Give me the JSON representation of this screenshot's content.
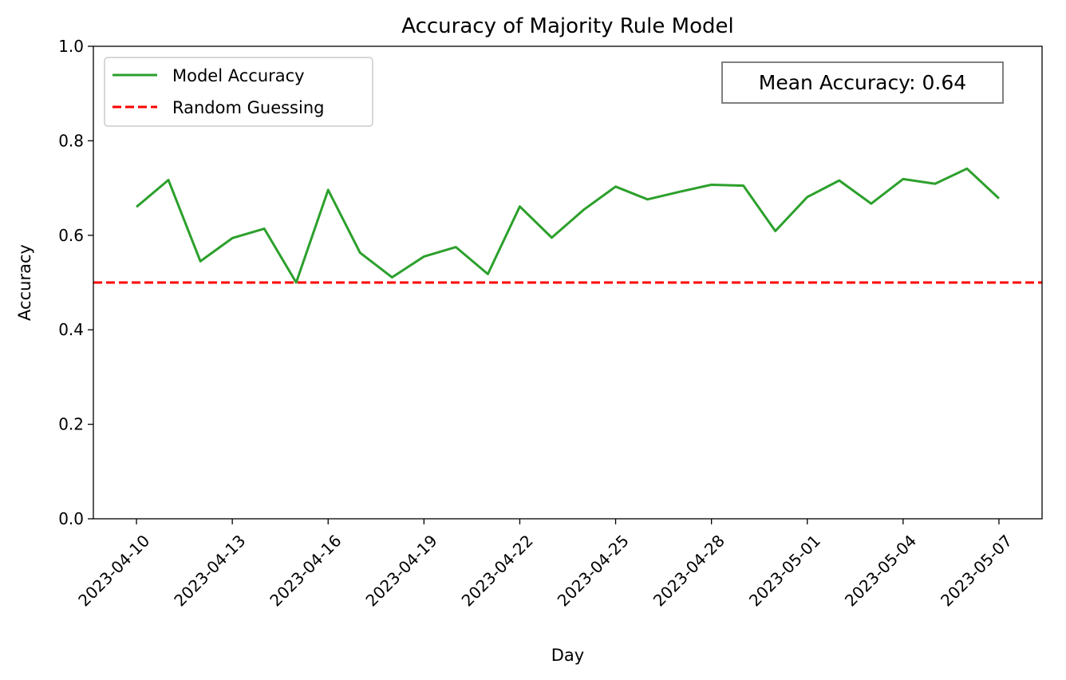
{
  "chart_data": {
    "type": "line",
    "title": "Accuracy of Majority Rule Model",
    "xlabel": "Day",
    "ylabel": "Accuracy",
    "ylim": [
      0,
      1
    ],
    "x_type": "date",
    "y_ticks": [
      "0.0",
      "0.2",
      "0.4",
      "0.6",
      "0.8",
      "1.0"
    ],
    "x_ticks": [
      "2023-04-10",
      "2023-04-13",
      "2023-04-16",
      "2023-04-19",
      "2023-04-22",
      "2023-04-25",
      "2023-04-28",
      "2023-05-01",
      "2023-05-04",
      "2023-05-07"
    ],
    "x": [
      "2023-04-10",
      "2023-04-11",
      "2023-04-12",
      "2023-04-13",
      "2023-04-14",
      "2023-04-15",
      "2023-04-16",
      "2023-04-17",
      "2023-04-18",
      "2023-04-19",
      "2023-04-20",
      "2023-04-21",
      "2023-04-22",
      "2023-04-23",
      "2023-04-24",
      "2023-04-25",
      "2023-04-26",
      "2023-04-27",
      "2023-04-28",
      "2023-04-29",
      "2023-04-30",
      "2023-05-01",
      "2023-05-02",
      "2023-05-03",
      "2023-05-04",
      "2023-05-05",
      "2023-05-06",
      "2023-05-07"
    ],
    "series": [
      {
        "name": "Model Accuracy",
        "color": "#2ca02c",
        "style": "solid",
        "values": [
          0.66,
          0.717,
          0.545,
          0.594,
          0.614,
          0.5,
          0.696,
          0.563,
          0.511,
          0.555,
          0.575,
          0.518,
          0.661,
          0.595,
          0.654,
          0.703,
          0.676,
          0.692,
          0.707,
          0.705,
          0.609,
          0.681,
          0.716,
          0.667,
          0.719,
          0.709,
          0.741,
          0.678
        ]
      },
      {
        "name": "Random Guessing",
        "color": "#ff0000",
        "style": "dashed",
        "y": 0.5
      }
    ],
    "annotation": "Mean Accuracy: 0.64",
    "grid": false,
    "legend_position": "upper-left"
  }
}
